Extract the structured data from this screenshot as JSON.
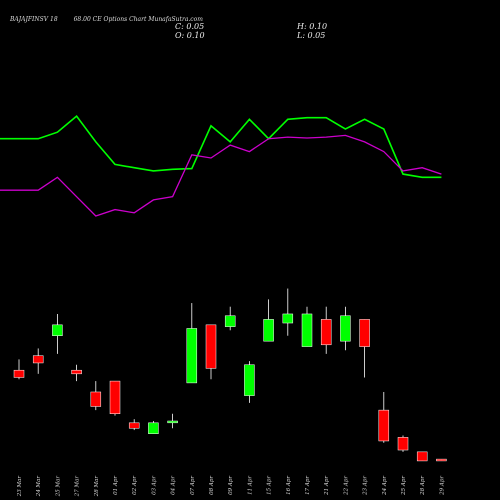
{
  "header": {
    "symbol": "BAJAJFINSV 18",
    "strike_desc": "68.00  CE Options  Chart MunafaSutra.com"
  },
  "ohlc": {
    "close": "C: 0.05",
    "open": "O: 0.10",
    "high": "H: 0.10",
    "low": "L: 0.05"
  },
  "colors": {
    "background": "#000000",
    "bullish": "#00ff00",
    "bearish": "#ff0000",
    "upper_line": "#00ff00",
    "lower_line": "#cc00cc",
    "text": "#dddddd"
  },
  "chart_data": {
    "type": "candlestick",
    "grid": false,
    "categories": [
      "23 Mar",
      "24 Mar",
      "25 Mar",
      "27 Mar",
      "28 Mar",
      "01 Apr",
      "02 Apr",
      "03 Apr",
      "04 Apr",
      "07 Apr",
      "08 Apr",
      "09 Apr",
      "11 Apr",
      "15 Apr",
      "16 Apr",
      "17 Apr",
      "21 Apr",
      "22 Apr",
      "23 Apr",
      "24 Apr",
      "25 Apr",
      "28 Apr",
      "29 Apr"
    ],
    "candles": [
      {
        "open": 6.55,
        "high": 6.85,
        "low": 6.3,
        "close": 6.35
      },
      {
        "open": 6.95,
        "high": 7.15,
        "low": 6.45,
        "close": 6.75
      },
      {
        "open": 7.5,
        "high": 8.1,
        "low": 7.0,
        "close": 7.8
      },
      {
        "open": 6.55,
        "high": 6.7,
        "low": 6.25,
        "close": 6.45
      },
      {
        "open": 5.95,
        "high": 6.25,
        "low": 5.45,
        "close": 5.55
      },
      {
        "open": 6.25,
        "high": 6.25,
        "low": 5.3,
        "close": 5.35
      },
      {
        "open": 5.1,
        "high": 5.2,
        "low": 4.9,
        "close": 4.95
      },
      {
        "open": 4.8,
        "high": 5.15,
        "low": 4.8,
        "close": 5.1
      },
      {
        "open": 5.1,
        "high": 5.35,
        "low": 4.95,
        "close": 5.15
      },
      {
        "open": 6.2,
        "high": 8.4,
        "low": 6.2,
        "close": 7.7
      },
      {
        "open": 7.8,
        "high": 7.8,
        "low": 6.3,
        "close": 6.6
      },
      {
        "open": 7.75,
        "high": 8.3,
        "low": 7.65,
        "close": 8.05
      },
      {
        "open": 5.85,
        "high": 6.8,
        "low": 5.65,
        "close": 6.7
      },
      {
        "open": 7.35,
        "high": 8.5,
        "low": 7.35,
        "close": 7.95
      },
      {
        "open": 7.85,
        "high": 8.8,
        "low": 7.5,
        "close": 8.1
      },
      {
        "open": 7.2,
        "high": 8.3,
        "low": 7.2,
        "close": 8.1
      },
      {
        "open": 7.95,
        "high": 8.3,
        "low": 7.0,
        "close": 7.25
      },
      {
        "open": 7.35,
        "high": 8.3,
        "low": 7.1,
        "close": 8.05
      },
      {
        "open": 7.95,
        "high": 7.95,
        "low": 6.35,
        "close": 7.2
      },
      {
        "open": 5.45,
        "high": 5.95,
        "low": 4.55,
        "close": 4.6
      },
      {
        "open": 4.7,
        "high": 4.75,
        "low": 4.3,
        "close": 4.35
      },
      {
        "open": 4.3,
        "high": 4.3,
        "low": 4.05,
        "close": 4.05
      },
      {
        "open": 4.1,
        "high": 4.1,
        "low": 4.05,
        "close": 4.05
      }
    ],
    "ylim": [
      3.8,
      10.0
    ],
    "indicators": [
      {
        "color": "#00ff00",
        "values": [
          88,
          88,
          90,
          95,
          87,
          80,
          79,
          78,
          78.5,
          78.7,
          92,
          87,
          94,
          88,
          94,
          94.5,
          94.5,
          91,
          94,
          91,
          77,
          76,
          76
        ]
      },
      {
        "color": "#cc00cc",
        "values": [
          72,
          72,
          76,
          70,
          64,
          66,
          65,
          69,
          70,
          83,
          82,
          86,
          84,
          88,
          88.5,
          88.2,
          88.5,
          89,
          87,
          84,
          78,
          79,
          77
        ]
      }
    ],
    "indicator_ylim": [
      55,
      100
    ]
  }
}
